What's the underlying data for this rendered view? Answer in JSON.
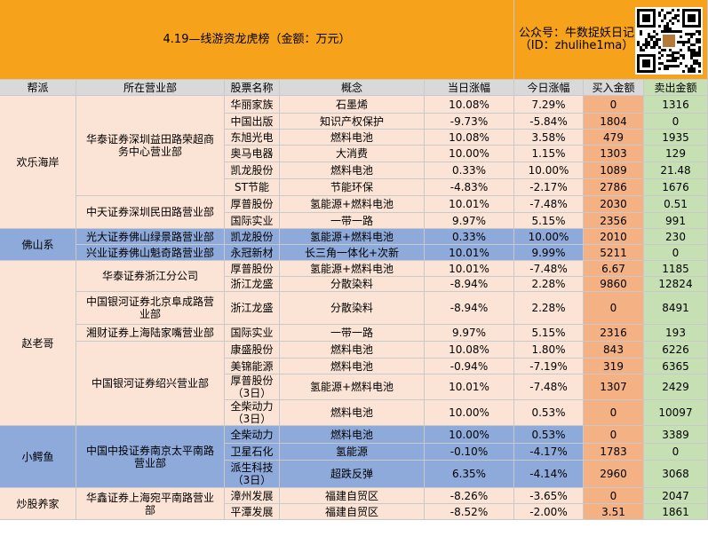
{
  "title": "4.19—线游资龙虎榜（金额：万元）",
  "account": {
    "line1": "公众号：牛数捉妖日记",
    "line2": "（ID：zhulihe1ma）"
  },
  "colors": {
    "orange": "#f7a21b",
    "peach": "#fbe4d5",
    "blue": "#8eaadb",
    "green": "#c6e0b4",
    "buy_fill": "#f4b183",
    "header_fill": "#d9d9d9"
  },
  "headers": [
    "帮派",
    "所在营业部",
    "股票名称",
    "概念",
    "当日涨幅",
    "今日涨幅",
    "买入金额",
    "卖出金额"
  ],
  "factions": [
    {
      "name": "欢乐海岸",
      "row_start": 0,
      "row_end": 7
    },
    {
      "name": "佛山系",
      "row_start": 8,
      "row_end": 9
    },
    {
      "name": "赵老哥",
      "row_start": 10,
      "row_end": 17
    },
    {
      "name": "小鳄鱼",
      "row_start": 18,
      "row_end": 20
    },
    {
      "name": "炒股养家",
      "row_start": 21,
      "row_end": 22
    }
  ],
  "branches": [
    {
      "name": "华泰证券深圳益田路荣超商务中心营业部",
      "row_start": 0,
      "row_end": 5
    },
    {
      "name": "中天证券深圳民田路营业部",
      "row_start": 6,
      "row_end": 7
    },
    {
      "name": "光大证券佛山绿景路营业部",
      "row_start": 8,
      "row_end": 8
    },
    {
      "name": "兴业证券佛山魁奇路营业部",
      "row_start": 9,
      "row_end": 9
    },
    {
      "name": "华泰证券浙江分公司",
      "row_start": 10,
      "row_end": 11
    },
    {
      "name": "中国银河证券北京阜成路营业部",
      "row_start": 12,
      "row_end": 12
    },
    {
      "name": "湘财证券上海陆家嘴营业部",
      "row_start": 13,
      "row_end": 13
    },
    {
      "name": "中国银河证券绍兴营业部",
      "row_start": 14,
      "row_end": 17
    },
    {
      "name": "中国中投证券南京太平南路营业部",
      "row_start": 18,
      "row_end": 20
    },
    {
      "name": "华鑫证券上海宛平南路营业部",
      "row_start": 21,
      "row_end": 22
    }
  ],
  "rows": [
    {
      "stock": "华丽家族",
      "concept": "石墨烯",
      "prev_chg": "10.08%",
      "today_chg": "7.29%",
      "buy": "0",
      "sell": "1316"
    },
    {
      "stock": "中国出版",
      "concept": "知识产权保护",
      "prev_chg": "-9.73%",
      "today_chg": "-5.84%",
      "buy": "1804",
      "sell": "0"
    },
    {
      "stock": "东旭光电",
      "concept": "燃料电池",
      "prev_chg": "10.08%",
      "today_chg": "3.58%",
      "buy": "479",
      "sell": "1935"
    },
    {
      "stock": "奥马电器",
      "concept": "大消费",
      "prev_chg": "10.00%",
      "today_chg": "1.15%",
      "buy": "1303",
      "sell": "129"
    },
    {
      "stock": "凯龙股份",
      "concept": "燃料电池",
      "prev_chg": "0.33%",
      "today_chg": "10.00%",
      "buy": "1089",
      "sell": "21.48"
    },
    {
      "stock": "ST节能",
      "concept": "节能环保",
      "prev_chg": "-4.83%",
      "today_chg": "-2.17%",
      "buy": "2786",
      "sell": "1676"
    },
    {
      "stock": "厚普股份",
      "concept": "氢能源+燃料电池",
      "prev_chg": "10.01%",
      "today_chg": "-7.48%",
      "buy": "2030",
      "sell": "0.51"
    },
    {
      "stock": "国际实业",
      "concept": "一带一路",
      "prev_chg": "9.97%",
      "today_chg": "5.15%",
      "buy": "2356",
      "sell": "991"
    },
    {
      "stock": "凯龙股份",
      "concept": "氢能源+燃料电池",
      "prev_chg": "0.33%",
      "today_chg": "10.00%",
      "buy": "2010",
      "sell": "230"
    },
    {
      "stock": "永冠新材",
      "concept": "长三角一体化+次新",
      "prev_chg": "10.01%",
      "today_chg": "9.99%",
      "buy": "5211",
      "sell": "0"
    },
    {
      "stock": "厚普股份",
      "concept": "氢能源+燃料电池",
      "prev_chg": "10.01%",
      "today_chg": "-7.48%",
      "buy": "6.67",
      "sell": "1185"
    },
    {
      "stock": "浙江龙盛",
      "concept": "分散染料",
      "prev_chg": "-8.94%",
      "today_chg": "2.28%",
      "buy": "9860",
      "sell": "12824"
    },
    {
      "stock": "浙江龙盛",
      "concept": "分散染料",
      "prev_chg": "-8.94%",
      "today_chg": "2.28%",
      "buy": "0",
      "sell": "8491"
    },
    {
      "stock": "国际实业",
      "concept": "一带一路",
      "prev_chg": "9.97%",
      "today_chg": "5.15%",
      "buy": "2316",
      "sell": "193"
    },
    {
      "stock": "康盛股份",
      "concept": "燃料电池",
      "prev_chg": "10.08%",
      "today_chg": "1.80%",
      "buy": "843",
      "sell": "6226"
    },
    {
      "stock": "美锦能源",
      "concept": "燃料电池",
      "prev_chg": "-0.94%",
      "today_chg": "-7.19%",
      "buy": "319",
      "sell": "6365"
    },
    {
      "stock": "厚普股份（3日）",
      "concept": "氢能源+燃料电池",
      "prev_chg": "10.01%",
      "today_chg": "-7.48%",
      "buy": "1307",
      "sell": "2429"
    },
    {
      "stock": "全柴动力（3日）",
      "concept": "燃料电池",
      "prev_chg": "10.00%",
      "today_chg": "0.53%",
      "buy": "0",
      "sell": "10097"
    },
    {
      "stock": "全柴动力",
      "concept": "燃料电池",
      "prev_chg": "10.00%",
      "today_chg": "0.53%",
      "buy": "0",
      "sell": "3389"
    },
    {
      "stock": "卫星石化",
      "concept": "氢能源",
      "prev_chg": "-0.10%",
      "today_chg": "-4.17%",
      "buy": "1783",
      "sell": "0"
    },
    {
      "stock": "派生科技（3日）",
      "concept": "超跌反弹",
      "prev_chg": "6.35%",
      "today_chg": "-4.14%",
      "buy": "2960",
      "sell": "3068"
    },
    {
      "stock": "漳州发展",
      "concept": "福建自贸区",
      "prev_chg": "-8.26%",
      "today_chg": "-3.65%",
      "buy": "0",
      "sell": "2047"
    },
    {
      "stock": "平潭发展",
      "concept": "福建自贸区",
      "prev_chg": "-8.52%",
      "today_chg": "-2.00%",
      "buy": "3.51",
      "sell": "1861"
    }
  ]
}
